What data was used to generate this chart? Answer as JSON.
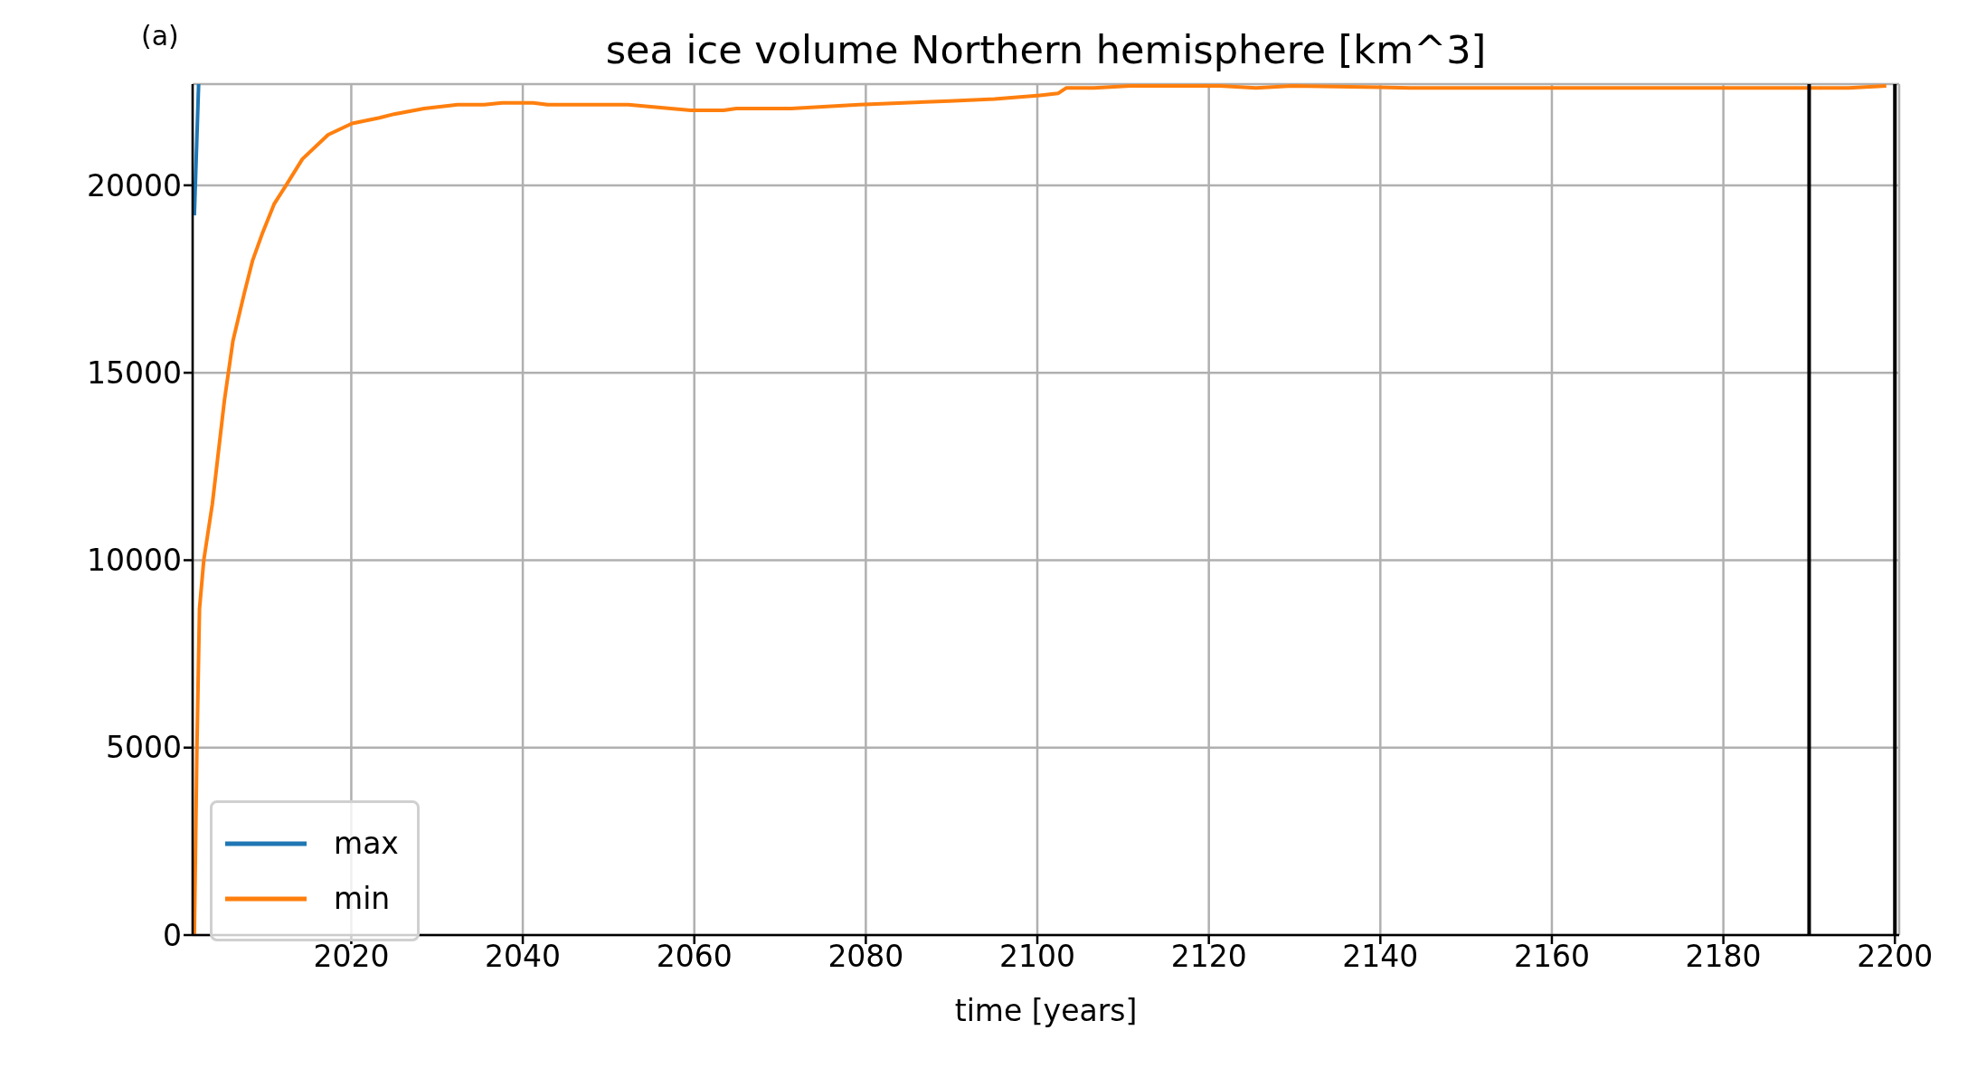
{
  "chart_data": {
    "type": "line",
    "title": "sea ice volume Northern hemisphere [km^3]",
    "xlabel": "time [years]",
    "annotations": [
      "(a)"
    ],
    "xlim": [
      2001.5,
      2200.5
    ],
    "xticks": [
      2020,
      2040,
      2060,
      2080,
      2100,
      2120,
      2140,
      2160,
      2180,
      2200
    ],
    "ylim": [
      0,
      22700
    ],
    "yticks": [
      0,
      5000,
      10000,
      15000,
      20000
    ],
    "grid": true,
    "legend": "bottom left",
    "marker": "none",
    "line_style": "solid",
    "series": [
      {
        "name": "max",
        "color": "#1f77b4",
        "x": [
          2001.7,
          2002.2
        ],
        "values": [
          19200,
          22700
        ]
      },
      {
        "name": "min",
        "color": "#ff7f0e",
        "x": [
          2001.7,
          2002.0,
          2002.3,
          2002.8,
          2003.8,
          2005.2,
          2006.2,
          2007.5,
          2008.5,
          2009.6,
          2011.0,
          2012.4,
          2014.3,
          2017.3,
          2020.1,
          2023.3,
          2025.0,
          2028.5,
          2032.4,
          2035.5,
          2037.6,
          2039.8,
          2041.2,
          2042.9,
          2048.2,
          2052.3,
          2059.6,
          2063.4,
          2064.9,
          2071.3,
          2079.2,
          2089.7,
          2095.0,
          2100.3,
          2102.4,
          2103.4,
          2106.6,
          2110.8,
          2121.3,
          2125.5,
          2129.7,
          2143.5,
          2155.1,
          2174.6,
          2194.6,
          2199.0
        ],
        "values": [
          0,
          5000,
          8700,
          10000,
          11500,
          14250,
          15850,
          17100,
          18000,
          18700,
          19500,
          20000,
          20700,
          21350,
          21650,
          21800,
          21900,
          22050,
          22150,
          22150,
          22200,
          22200,
          22200,
          22150,
          22150,
          22150,
          22000,
          22000,
          22050,
          22050,
          22150,
          22250,
          22300,
          22400,
          22450,
          22600,
          22600,
          22650,
          22650,
          22600,
          22650,
          22600,
          22600,
          22600,
          22600,
          22650
        ]
      }
    ],
    "ref_lines": [
      {
        "axis": "x",
        "value": 2190,
        "color": "#000000"
      },
      {
        "axis": "x",
        "value": 2200,
        "color": "#000000"
      }
    ]
  }
}
